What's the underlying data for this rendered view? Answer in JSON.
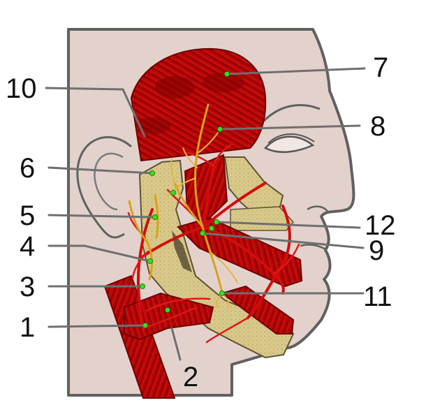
{
  "labels": [
    {
      "id": "label-1",
      "text": "1"
    },
    {
      "id": "label-2",
      "text": "2"
    },
    {
      "id": "label-3",
      "text": "3"
    },
    {
      "id": "label-4",
      "text": "4"
    },
    {
      "id": "label-5",
      "text": "5"
    },
    {
      "id": "label-6",
      "text": "6"
    },
    {
      "id": "label-7",
      "text": "7"
    },
    {
      "id": "label-8",
      "text": "8"
    },
    {
      "id": "label-9",
      "text": "9"
    },
    {
      "id": "label-10",
      "text": "10"
    },
    {
      "id": "label-11",
      "text": "11"
    },
    {
      "id": "label-12",
      "text": "12"
    }
  ],
  "colors": {
    "skin": "#e3d2cc",
    "outline": "#606060",
    "muscle": "#b30000",
    "muscle_dark": "#7a0000",
    "bone": "#d9c98a",
    "nerve": "#d8a21a",
    "artery": "#d40c0c",
    "marker": "#35e01b"
  }
}
